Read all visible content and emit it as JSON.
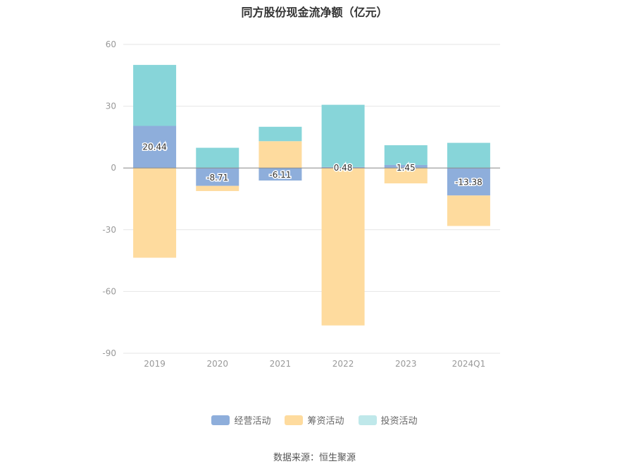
{
  "chart_data": {
    "type": "bar",
    "stacked": true,
    "title": "同方股份现金流净额（亿元）",
    "categories": [
      "2019",
      "2020",
      "2021",
      "2022",
      "2023",
      "2024Q1"
    ],
    "yticks": [
      "60",
      "30",
      "0",
      "-30",
      "-60",
      "-90"
    ],
    "ylim": [
      -90,
      60
    ],
    "series": [
      {
        "name": "经营活动",
        "color": "#8eaedb",
        "values": [
          20.44,
          -8.71,
          -6.11,
          0.48,
          1.45,
          -13.38
        ],
        "labels": [
          "20.44",
          "-8.71",
          "-6.11",
          "0.48",
          "1.45",
          "-13.38"
        ]
      },
      {
        "name": "筹资活动",
        "color": "#fedb9e",
        "values": [
          -43.6,
          -2.5,
          13.0,
          -76.5,
          -7.5,
          -14.8
        ]
      },
      {
        "name": "投资活动",
        "color": "#87d5d9",
        "values": [
          29.6,
          9.8,
          7.0,
          30.2,
          9.6,
          12.2
        ]
      }
    ],
    "legend_position": "bottom",
    "grid": true
  },
  "source": "数据来源：恒生聚源"
}
